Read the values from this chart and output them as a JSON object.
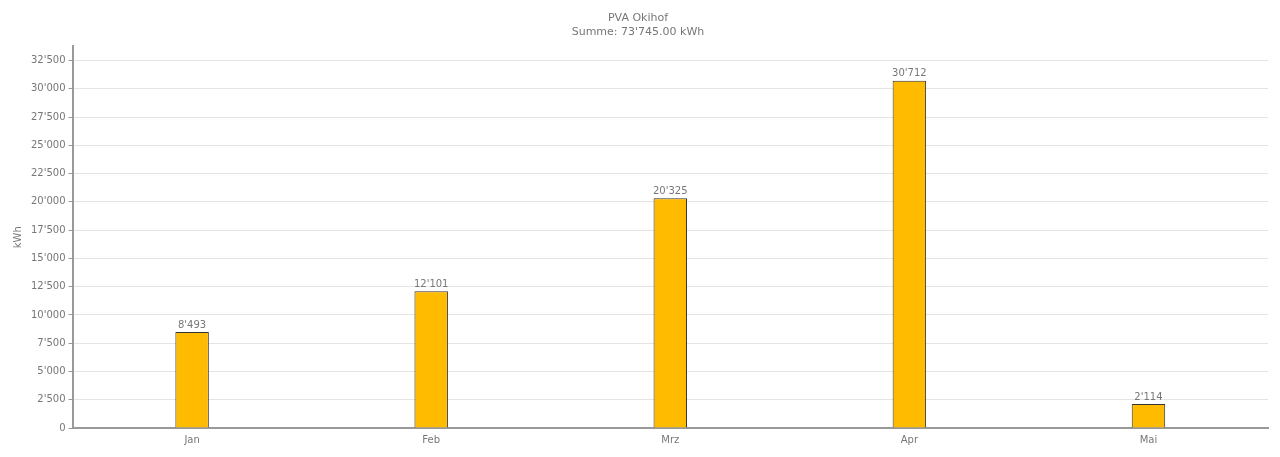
{
  "chart_data": {
    "type": "bar",
    "title": "PVA Okihof",
    "subtitle": "Summe: 73'745.00 kWh",
    "ylabel": "kWh",
    "categories": [
      "Jan",
      "Feb",
      "Mrz",
      "Apr",
      "Mai"
    ],
    "values": [
      8493,
      12101,
      20325,
      30712,
      2114
    ],
    "value_labels": [
      "8'493",
      "12'101",
      "20'325",
      "30'712",
      "2'114"
    ],
    "color": "#ffbb00",
    "ylim": [
      0,
      33750
    ],
    "yticks": [
      {
        "value": 0,
        "label": "0"
      },
      {
        "value": 2500,
        "label": "2'500"
      },
      {
        "value": 5000,
        "label": "5'000"
      },
      {
        "value": 7500,
        "label": "7'500"
      },
      {
        "value": 10000,
        "label": "10'000"
      },
      {
        "value": 12500,
        "label": "12'500"
      },
      {
        "value": 15000,
        "label": "15'000"
      },
      {
        "value": 17500,
        "label": "17'500"
      },
      {
        "value": 20000,
        "label": "20'000"
      },
      {
        "value": 22500,
        "label": "22'500"
      },
      {
        "value": 25000,
        "label": "25'000"
      },
      {
        "value": 27500,
        "label": "27'500"
      },
      {
        "value": 30000,
        "label": "30'000"
      },
      {
        "value": 32500,
        "label": "32'500"
      }
    ],
    "grid": "y",
    "legend": false
  }
}
